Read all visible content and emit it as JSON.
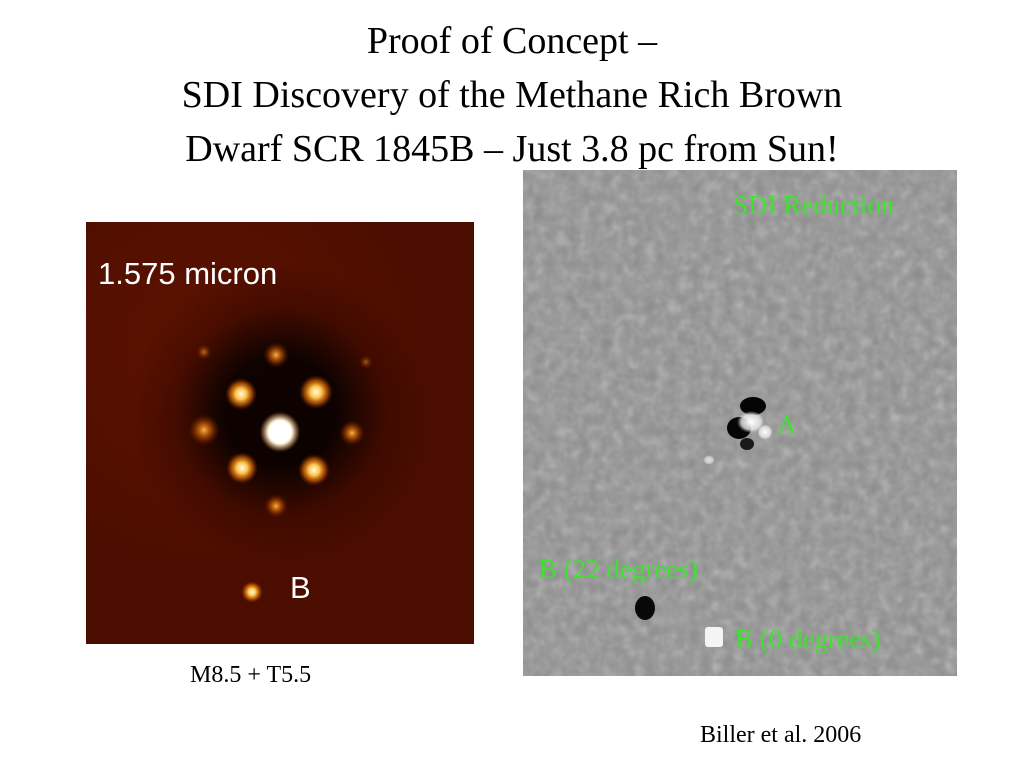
{
  "title": {
    "line1": "Proof of Concept –",
    "line2": "SDI Discovery of the Methane Rich Brown",
    "line3": "Dwarf SCR 1845B – Just 3.8 pc from Sun!"
  },
  "left_image": {
    "wavelength_label": "1.575 micron",
    "companion_label": "B",
    "caption": "M8.5 + T5.5"
  },
  "right_image": {
    "reduction_label": "SDI Reduction",
    "primary_label": "A",
    "b22_label": "B (22 degrees)",
    "b0_label": "B (0 degrees)"
  },
  "citation": "Biller et al. 2006",
  "colors": {
    "slide_background": "#ffffff",
    "left_image_background": "#4c0e00",
    "right_image_background": "#8c8c8c",
    "annotation_green": "#3ee32e"
  }
}
